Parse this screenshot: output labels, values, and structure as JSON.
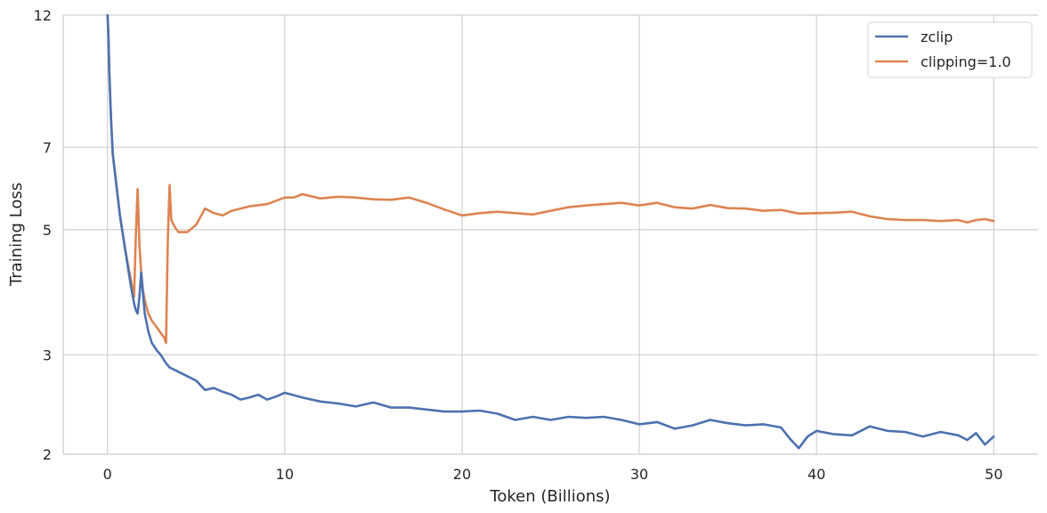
{
  "chart_data": {
    "type": "line",
    "title": "",
    "xlabel": "Token (Billions)",
    "ylabel": "Training Loss",
    "xlim": [
      -2.5,
      52.5
    ],
    "ylim": [
      2,
      12
    ],
    "yscale": "log",
    "xticks": [
      0,
      10,
      20,
      30,
      40,
      50
    ],
    "yticks": [
      2,
      3,
      5,
      7,
      12
    ],
    "xtick_labels": [
      "0",
      "10",
      "20",
      "30",
      "40",
      "50"
    ],
    "ytick_labels": [
      "2",
      "3",
      "5",
      "7",
      "12"
    ],
    "grid": true,
    "legend_position": "top-right",
    "series": [
      {
        "name": "zclip",
        "color": "#4c72b0",
        "x": [
          0,
          0.05,
          0.1,
          0.2,
          0.3,
          0.5,
          0.7,
          1.0,
          1.3,
          1.5,
          1.6,
          1.7,
          1.8,
          1.9,
          2.0,
          2.1,
          2.3,
          2.5,
          2.8,
          3.0,
          3.3,
          3.5,
          4.0,
          4.5,
          5.0,
          5.5,
          6.0,
          6.5,
          7.0,
          7.5,
          8.0,
          8.5,
          9.0,
          9.5,
          10,
          11,
          12,
          13,
          14,
          15,
          16,
          17,
          18,
          19,
          20,
          21,
          22,
          23,
          24,
          25,
          26,
          27,
          28,
          29,
          30,
          31,
          32,
          33,
          34,
          35,
          36,
          37,
          38,
          38.5,
          39,
          39.5,
          40,
          41,
          42,
          42.5,
          43,
          44,
          45,
          46,
          47,
          48,
          48.5,
          49,
          49.5,
          50
        ],
        "y": [
          12,
          11,
          9.5,
          7.8,
          6.8,
          6.0,
          5.3,
          4.6,
          4.0,
          3.7,
          3.6,
          3.55,
          3.8,
          4.2,
          3.85,
          3.55,
          3.3,
          3.15,
          3.05,
          3.0,
          2.9,
          2.85,
          2.8,
          2.75,
          2.7,
          2.6,
          2.62,
          2.58,
          2.55,
          2.5,
          2.52,
          2.55,
          2.5,
          2.53,
          2.57,
          2.52,
          2.48,
          2.46,
          2.43,
          2.47,
          2.42,
          2.42,
          2.4,
          2.38,
          2.38,
          2.39,
          2.36,
          2.3,
          2.33,
          2.3,
          2.33,
          2.32,
          2.33,
          2.3,
          2.26,
          2.28,
          2.22,
          2.25,
          2.3,
          2.27,
          2.25,
          2.26,
          2.23,
          2.13,
          2.05,
          2.15,
          2.2,
          2.17,
          2.16,
          2.2,
          2.24,
          2.2,
          2.19,
          2.15,
          2.19,
          2.16,
          2.12,
          2.18,
          2.08,
          2.15
        ]
      },
      {
        "name": "clipping=1.0",
        "color": "#dd8452",
        "x": [
          0,
          0.05,
          0.1,
          0.2,
          0.3,
          0.5,
          0.7,
          1.0,
          1.3,
          1.5,
          1.6,
          1.7,
          1.8,
          1.9,
          2.0,
          2.1,
          2.3,
          2.5,
          2.8,
          3.0,
          3.2,
          3.3,
          3.4,
          3.5,
          3.6,
          3.8,
          4.0,
          4.5,
          5.0,
          5.5,
          6.0,
          6.5,
          7.0,
          7.5,
          8.0,
          9.0,
          10,
          10.5,
          11,
          12,
          13,
          14,
          15,
          16,
          17,
          18,
          19,
          20,
          21,
          22,
          23,
          24,
          25,
          26,
          27,
          28,
          29,
          30,
          31,
          32,
          33,
          34,
          35,
          36,
          37,
          38,
          39,
          40,
          41,
          42,
          43,
          44,
          45,
          46,
          47,
          48,
          48.5,
          49,
          49.5,
          50
        ],
        "y": [
          12,
          11,
          9.5,
          7.8,
          6.8,
          6.0,
          5.3,
          4.6,
          4.1,
          3.8,
          4.9,
          5.9,
          4.7,
          4.2,
          3.9,
          3.75,
          3.55,
          3.45,
          3.35,
          3.28,
          3.22,
          3.15,
          4.8,
          6.0,
          5.2,
          5.05,
          4.95,
          4.95,
          5.1,
          5.45,
          5.35,
          5.3,
          5.4,
          5.45,
          5.5,
          5.55,
          5.7,
          5.7,
          5.78,
          5.68,
          5.72,
          5.7,
          5.66,
          5.65,
          5.7,
          5.58,
          5.43,
          5.3,
          5.35,
          5.38,
          5.35,
          5.32,
          5.4,
          5.48,
          5.52,
          5.55,
          5.58,
          5.52,
          5.58,
          5.48,
          5.45,
          5.53,
          5.46,
          5.45,
          5.4,
          5.42,
          5.34,
          5.35,
          5.36,
          5.38,
          5.28,
          5.22,
          5.2,
          5.2,
          5.18,
          5.2,
          5.15,
          5.2,
          5.22,
          5.18
        ]
      }
    ]
  }
}
